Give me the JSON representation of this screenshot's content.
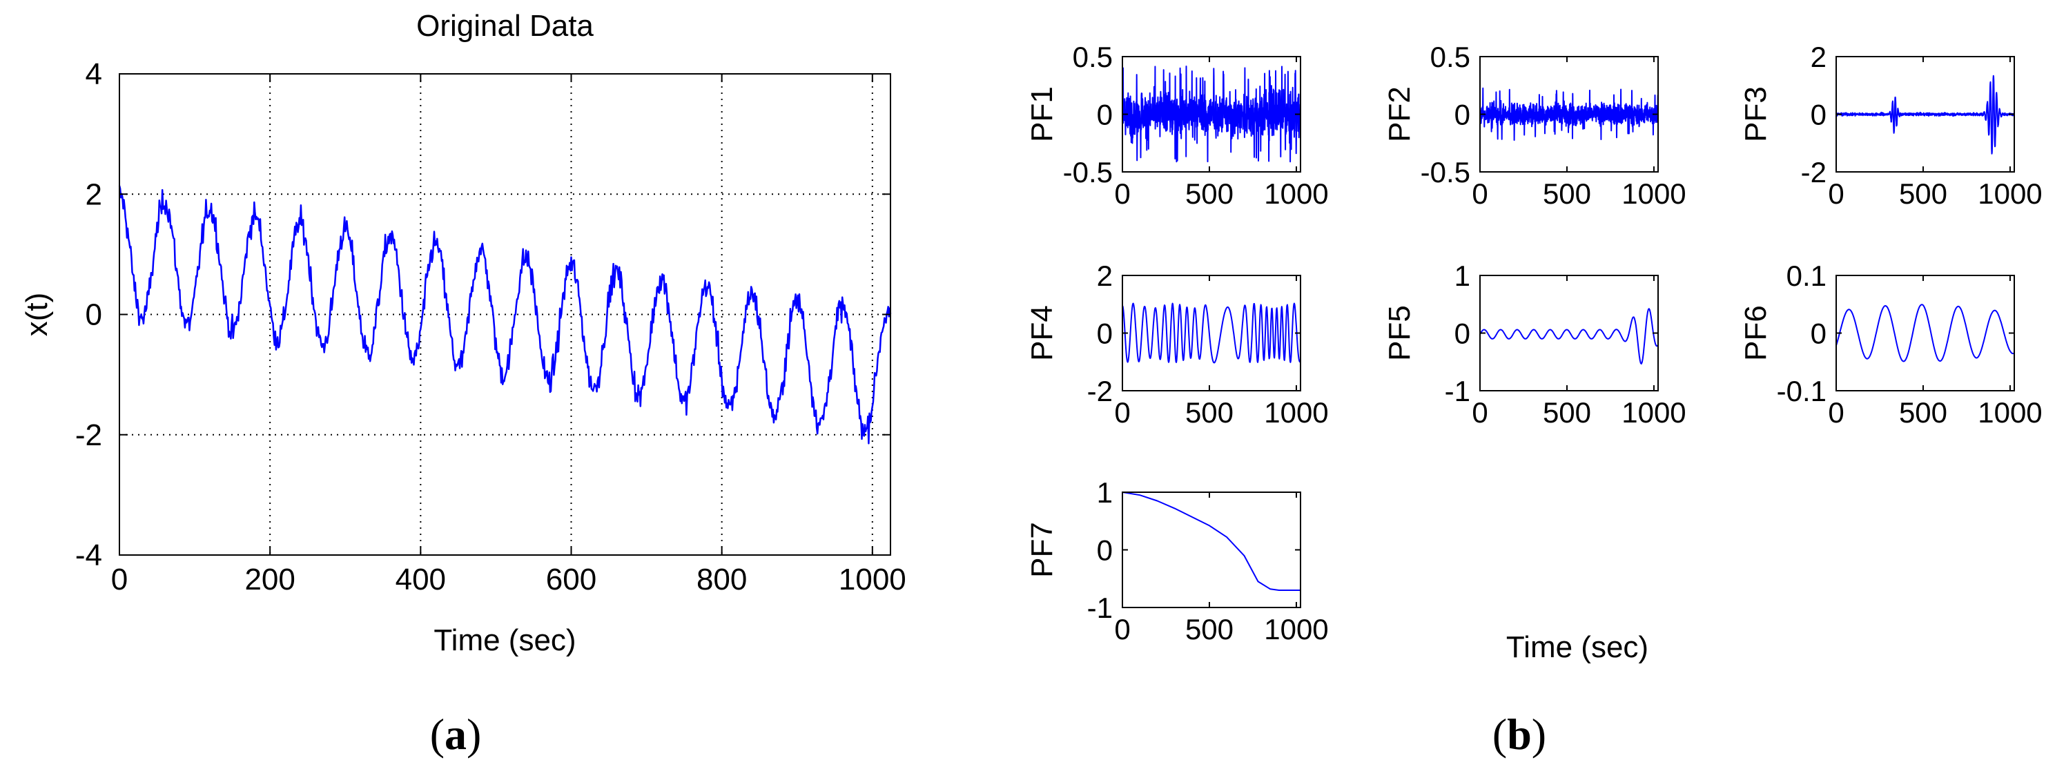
{
  "panel_labels": {
    "a": "a",
    "b": "b"
  },
  "colors": {
    "series": "#0000ff",
    "axis": "#000000",
    "grid": "#000000",
    "background": "#ffffff"
  },
  "shared_xlabel_b": "Time (sec)",
  "chart_data": [
    {
      "id": "original",
      "type": "line",
      "title": "Original Data",
      "xlabel": "Time (sec)",
      "ylabel": "x(t)",
      "xlim": [
        0,
        1024
      ],
      "ylim": [
        -4,
        4
      ],
      "xticks": [
        0,
        200,
        400,
        600,
        800,
        1000
      ],
      "yticks": [
        -4,
        -2,
        0,
        2,
        4
      ],
      "grid": true,
      "signal": "trend 1 - 2t/1024 plus sinusoid (amplitude ~1, period ~60 s) plus noise",
      "series": [
        {
          "x": [
            0,
            30,
            60,
            90,
            120,
            150,
            180,
            210,
            240,
            270,
            300,
            330,
            360,
            390,
            420,
            450,
            480,
            510,
            540,
            570,
            600,
            630,
            660,
            690,
            720,
            750,
            780,
            810,
            840,
            870,
            900,
            930,
            960,
            990,
            1020
          ],
          "y": [
            1.6,
            0.0,
            2.0,
            0.1,
            1.8,
            -0.2,
            2.0,
            -0.3,
            1.9,
            -0.4,
            1.6,
            -0.6,
            1.7,
            -0.8,
            1.4,
            -0.9,
            1.2,
            -1.1,
            1.1,
            -1.4,
            1.0,
            -1.3,
            0.7,
            -1.5,
            0.5,
            -1.7,
            0.3,
            -1.8,
            0.3,
            -1.9,
            0.0,
            -1.9,
            -0.2,
            -2.1,
            0.3
          ]
        }
      ]
    },
    {
      "id": "pf1",
      "type": "line",
      "ylabel": "PF1",
      "xlim": [
        0,
        1024
      ],
      "ylim": [
        -0.5,
        0.5
      ],
      "xticks": [
        0,
        500,
        1000
      ],
      "ytick_labels": [
        "-0.5",
        "0",
        "0.5"
      ],
      "signal": "dense high-frequency noise, amplitude ~0.2, spikes to ~0.45"
    },
    {
      "id": "pf2",
      "type": "line",
      "ylabel": "PF2",
      "xlim": [
        0,
        1024
      ],
      "ylim": [
        -0.5,
        0.5
      ],
      "xticks": [
        0,
        500,
        1000
      ],
      "ytick_labels": [
        "-0.5",
        "0",
        "0.5"
      ],
      "signal": "dense high-frequency noise, amplitude ~0.1, spikes to ~0.2"
    },
    {
      "id": "pf3",
      "type": "line",
      "ylabel": "PF3",
      "xlim": [
        0,
        1024
      ],
      "ylim": [
        -2,
        2
      ],
      "xticks": [
        0,
        500,
        1000
      ],
      "ytick_labels": [
        "-2",
        "0",
        "2"
      ],
      "signal": "near zero except bursts at t~330 (amplitude ~0.6) and t~860-930 (amplitude ~1.4)"
    },
    {
      "id": "pf4",
      "type": "line",
      "ylabel": "PF4",
      "xlim": [
        0,
        1024
      ],
      "ylim": [
        -2,
        2
      ],
      "xticks": [
        0,
        500,
        1000
      ],
      "ytick_labels": [
        "-2",
        "0",
        "2"
      ],
      "signal": "oscillation, amplitude ~1, period ~60 s"
    },
    {
      "id": "pf5",
      "type": "line",
      "ylabel": "PF5",
      "xlim": [
        0,
        1024
      ],
      "ylim": [
        -1,
        1
      ],
      "xticks": [
        0,
        500,
        1000
      ],
      "ytick_labels": [
        "-1",
        "0",
        "1"
      ],
      "signal": "small oscillation ~0.1, growing to ~0.5 near t=900-1000"
    },
    {
      "id": "pf6",
      "type": "line",
      "ylabel": "PF6",
      "xlim": [
        0,
        1024
      ],
      "ylim": [
        -0.1,
        0.1
      ],
      "xticks": [
        0,
        500,
        1000
      ],
      "ytick_labels": [
        "-0.1",
        "0",
        "0.1"
      ],
      "signal": "slow oscillation, amplitude ~0.05, period ~200 s"
    },
    {
      "id": "pf7",
      "type": "line",
      "ylabel": "PF7",
      "xlim": [
        0,
        1024
      ],
      "ylim": [
        -1,
        1
      ],
      "xticks": [
        0,
        500,
        1000
      ],
      "ytick_labels": [
        "-1",
        "0",
        "1"
      ],
      "signal": "trend from 1 to about -0.7",
      "series": [
        {
          "x": [
            0,
            100,
            200,
            300,
            400,
            500,
            600,
            700,
            780,
            850,
            900,
            1024
          ],
          "y": [
            1.0,
            0.95,
            0.85,
            0.72,
            0.57,
            0.42,
            0.22,
            -0.1,
            -0.55,
            -0.68,
            -0.7,
            -0.7
          ]
        }
      ]
    }
  ]
}
